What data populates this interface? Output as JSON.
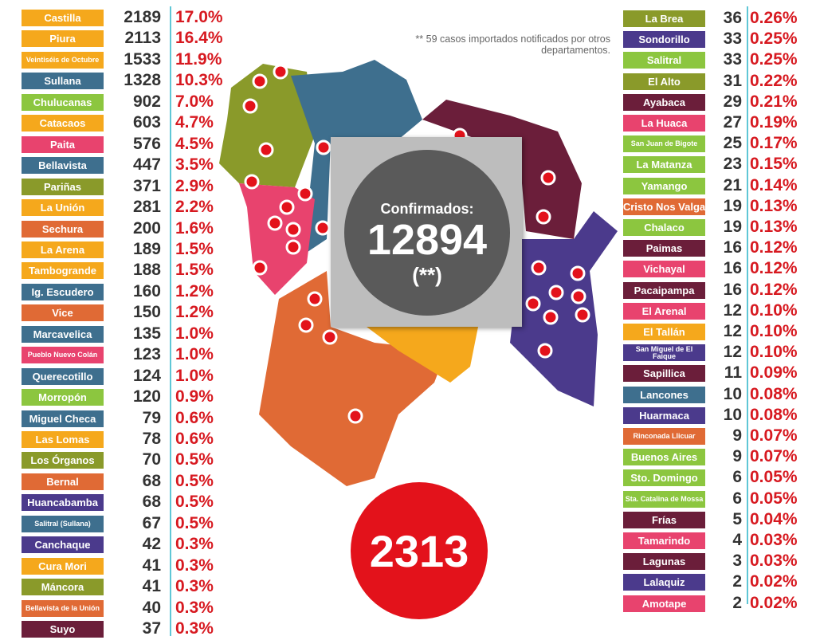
{
  "note": "** 59 casos importados notificados por otros departamentos.",
  "confirmed": {
    "label": "Confirmados:",
    "value": "12894",
    "mark": "(**)"
  },
  "total": "2313",
  "left_table": {
    "rows": [
      [
        "Castilla",
        "2189",
        "17.0%",
        "#f5a81c"
      ],
      [
        "Piura",
        "2113",
        "16.4%",
        "#f5a81c"
      ],
      [
        "Veintiséis de Octubre",
        "1533",
        "11.9%",
        "#f5a81c"
      ],
      [
        "Sullana",
        "1328",
        "10.3%",
        "#3e6f8e"
      ],
      [
        "Chulucanas",
        "902",
        "7.0%",
        "#8cc63f"
      ],
      [
        "Catacaos",
        "603",
        "4.7%",
        "#f5a81c"
      ],
      [
        "Paita",
        "576",
        "4.5%",
        "#e8436e"
      ],
      [
        "Bellavista",
        "447",
        "3.5%",
        "#3e6f8e"
      ],
      [
        "Pariñas",
        "371",
        "2.9%",
        "#8a9a2a"
      ],
      [
        "La Unión",
        "281",
        "2.2%",
        "#f5a81c"
      ],
      [
        "Sechura",
        "200",
        "1.6%",
        "#e06a35"
      ],
      [
        "La Arena",
        "189",
        "1.5%",
        "#f5a81c"
      ],
      [
        "Tambogrande",
        "188",
        "1.5%",
        "#f5a81c"
      ],
      [
        "Ig. Escudero",
        "160",
        "1.2%",
        "#3e6f8e"
      ],
      [
        "Vice",
        "150",
        "1.2%",
        "#e06a35"
      ],
      [
        "Marcavelica",
        "135",
        "1.0%",
        "#3e6f8e"
      ],
      [
        "Pueblo Nuevo Colán",
        "123",
        "1.0%",
        "#e8436e"
      ],
      [
        "Querecotillo",
        "124",
        "1.0%",
        "#3e6f8e"
      ],
      [
        "Morropón",
        "120",
        "0.9%",
        "#8cc63f"
      ],
      [
        "Miguel Checa",
        "79",
        "0.6%",
        "#3e6f8e"
      ],
      [
        "Las Lomas",
        "78",
        "0.6%",
        "#f5a81c"
      ],
      [
        "Los Órganos",
        "70",
        "0.5%",
        "#8a9a2a"
      ],
      [
        "Bernal",
        "68",
        "0.5%",
        "#e06a35"
      ],
      [
        "Huancabamba",
        "68",
        "0.5%",
        "#4b3a8c"
      ],
      [
        "Salitral (Sullana)",
        "67",
        "0.5%",
        "#3e6f8e"
      ],
      [
        "Canchaque",
        "42",
        "0.3%",
        "#4b3a8c"
      ],
      [
        "Cura Mori",
        "41",
        "0.3%",
        "#f5a81c"
      ],
      [
        "Máncora",
        "41",
        "0.3%",
        "#8a9a2a"
      ],
      [
        "Bellavista de la Unión",
        "40",
        "0.3%",
        "#e06a35"
      ],
      [
        "Suyo",
        "37",
        "0.3%",
        "#6b1e3a"
      ]
    ]
  },
  "right_table": {
    "rows": [
      [
        "La Brea",
        "36",
        "0.26%",
        "#8a9a2a"
      ],
      [
        "Sondorillo",
        "33",
        "0.25%",
        "#4b3a8c"
      ],
      [
        "Salitral",
        "33",
        "0.25%",
        "#8cc63f"
      ],
      [
        "El Alto",
        "31",
        "0.22%",
        "#8a9a2a"
      ],
      [
        "Ayabaca",
        "29",
        "0.21%",
        "#6b1e3a"
      ],
      [
        "La Huaca",
        "27",
        "0.19%",
        "#e8436e"
      ],
      [
        "San Juan de Bigote",
        "25",
        "0.17%",
        "#8cc63f"
      ],
      [
        "La Matanza",
        "23",
        "0.15%",
        "#8cc63f"
      ],
      [
        "Yamango",
        "21",
        "0.14%",
        "#8cc63f"
      ],
      [
        "Cristo Nos Valga",
        "19",
        "0.13%",
        "#e06a35"
      ],
      [
        "Chalaco",
        "19",
        "0.13%",
        "#8cc63f"
      ],
      [
        "Paimas",
        "16",
        "0.12%",
        "#6b1e3a"
      ],
      [
        "Vichayal",
        "16",
        "0.12%",
        "#e8436e"
      ],
      [
        "Pacaipampa",
        "16",
        "0.12%",
        "#6b1e3a"
      ],
      [
        "El Arenal",
        "12",
        "0.10%",
        "#e8436e"
      ],
      [
        "El Tallán",
        "12",
        "0.10%",
        "#f5a81c"
      ],
      [
        "San Miguel de El Faique",
        "12",
        "0.10%",
        "#4b3a8c"
      ],
      [
        "Sapillica",
        "11",
        "0.09%",
        "#6b1e3a"
      ],
      [
        "Lancones",
        "10",
        "0.08%",
        "#3e6f8e"
      ],
      [
        "Huarmaca",
        "10",
        "0.08%",
        "#4b3a8c"
      ],
      [
        "Rinconada Llicuar",
        "9",
        "0.07%",
        "#e06a35"
      ],
      [
        "Buenos Aires",
        "9",
        "0.07%",
        "#8cc63f"
      ],
      [
        "Sto. Domingo",
        "6",
        "0.05%",
        "#8cc63f"
      ],
      [
        "Sta. Catalina de Mossa",
        "6",
        "0.05%",
        "#8cc63f"
      ],
      [
        "Frías",
        "5",
        "0.04%",
        "#6b1e3a"
      ],
      [
        "Tamarindo",
        "4",
        "0.03%",
        "#e8436e"
      ],
      [
        "Lagunas",
        "3",
        "0.03%",
        "#6b1e3a"
      ],
      [
        "Lalaquiz",
        "2",
        "0.02%",
        "#4b3a8c"
      ],
      [
        "Amotape",
        "2",
        "0.02%",
        "#e8436e"
      ]
    ]
  }
}
